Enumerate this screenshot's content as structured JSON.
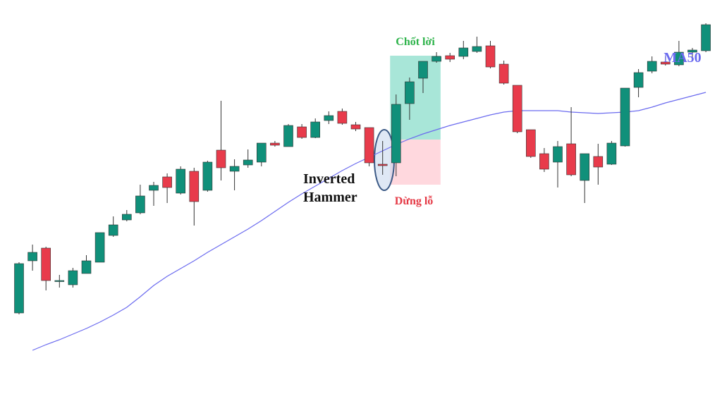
{
  "chart_data": {
    "type": "candlestick",
    "up_color": "#10907a",
    "down_color": "#e83b4b",
    "wick_color": "#333333",
    "ylim": [
      0,
      576
    ],
    "open": [
      132,
      206,
      224,
      178,
      172,
      188,
      204,
      242,
      264,
      274,
      306,
      325,
      302,
      333,
      306,
      363,
      333,
      342,
      346,
      373,
      368,
      396,
      381,
      405,
      418,
      399,
      395,
      343,
      345,
      429,
      465,
      489,
      497,
      496,
      503,
      511,
      485,
      455,
      392,
      358,
      346,
      372,
      320,
      354,
      343,
      369,
      452,
      475,
      488,
      484,
      502,
      504
    ],
    "high": [
      204,
      229,
      226,
      186,
      196,
      214,
      246,
      269,
      278,
      314,
      318,
      330,
      340,
      338,
      348,
      433,
      350,
      364,
      373,
      376,
      400,
      400,
      408,
      418,
      422,
      403,
      395,
      376,
      442,
      466,
      489,
      502,
      501,
      518,
      524,
      518,
      490,
      455,
      392,
      366,
      376,
      424,
      358,
      372,
      376,
      451,
      478,
      496,
      496,
      518,
      508,
      543
    ],
    "low": [
      130,
      192,
      164,
      168,
      168,
      188,
      204,
      240,
      262,
      272,
      284,
      288,
      300,
      256,
      304,
      320,
      306,
      338,
      340,
      368,
      368,
      379,
      380,
      400,
      399,
      390,
      340,
      328,
      326,
      406,
      444,
      487,
      488,
      492,
      501,
      479,
      456,
      387,
      352,
      332,
      310,
      326,
      288,
      314,
      342,
      368,
      438,
      472,
      483,
      482,
      492,
      502
    ],
    "close": [
      202,
      218,
      178,
      178,
      192,
      206,
      246,
      257,
      272,
      298,
      313,
      310,
      336,
      290,
      346,
      338,
      340,
      349,
      373,
      370,
      398,
      381,
      403,
      412,
      401,
      393,
      345,
      341,
      428,
      460,
      489,
      496,
      492,
      508,
      510,
      481,
      458,
      389,
      354,
      336,
      368,
      328,
      358,
      339,
      373,
      451,
      473,
      489,
      485,
      502,
      505,
      541
    ],
    "series": [
      {
        "name": "MA50",
        "color": "#6b6bef",
        "values": [
          null,
          79,
          87,
          94,
          102,
          110,
          119,
          129,
          140,
          155,
          171,
          184,
          195,
          206,
          218,
          229,
          240,
          251,
          263,
          276,
          289,
          301,
          312,
          323,
          334,
          344,
          353,
          362,
          371,
          379,
          386,
          392,
          398,
          403,
          408,
          413,
          417,
          419,
          419,
          419,
          419,
          417,
          416,
          415,
          416,
          417,
          419,
          424,
          430,
          435,
          440,
          445
        ]
      }
    ],
    "pattern_label": [
      "Inverted",
      "Hammer"
    ],
    "take_profit": {
      "label": "Chốt lời",
      "from": 378,
      "to": 497,
      "color": "#a8e6d8",
      "text_color": "#2db34a"
    },
    "stop_loss": {
      "label": "Dừng lỗ",
      "from": 314,
      "to": 378,
      "color": "#ffd8de",
      "text_color": "#e53a46"
    }
  }
}
